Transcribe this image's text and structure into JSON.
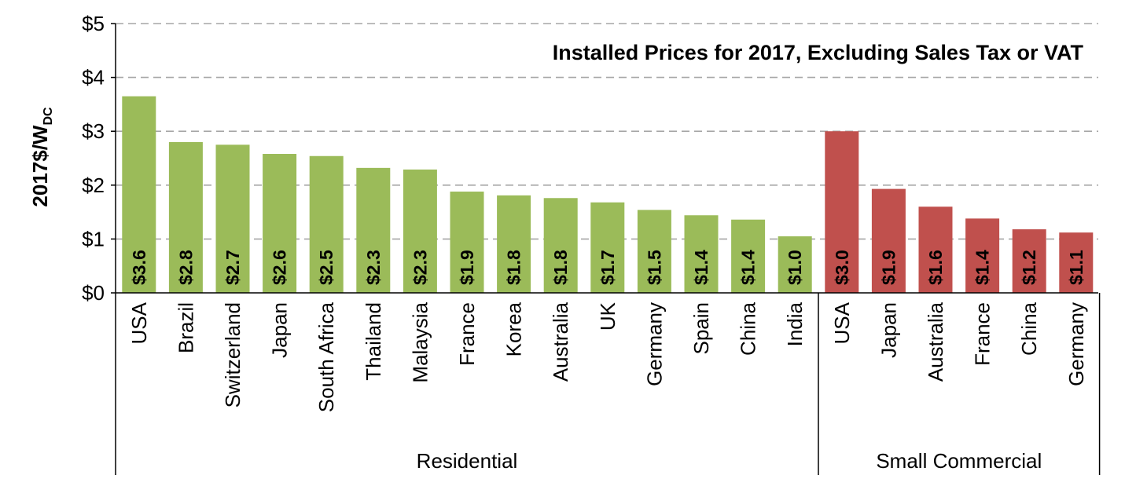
{
  "chart_data": {
    "type": "bar",
    "title": "Installed Prices for 2017, Excluding Sales Tax or VAT",
    "ylabel": "2017$/W",
    "ylabel_subscript": "DC",
    "ylim": [
      0,
      5
    ],
    "y_ticks": [
      0,
      1,
      2,
      3,
      4,
      5
    ],
    "y_tick_labels": [
      "$0",
      "$1",
      "$2",
      "$3",
      "$4",
      "$5"
    ],
    "grid": "horizontal dashed",
    "groups": [
      {
        "name": "Residential",
        "color": "#9BBB59",
        "categories": [
          "USA",
          "Brazil",
          "Switzerland",
          "Japan",
          "South Africa",
          "Thailand",
          "Malaysia",
          "France",
          "Korea",
          "Australia",
          "UK",
          "Germany",
          "Spain",
          "China",
          "India"
        ],
        "values": [
          3.65,
          2.8,
          2.75,
          2.58,
          2.54,
          2.32,
          2.29,
          1.88,
          1.81,
          1.76,
          1.68,
          1.54,
          1.44,
          1.36,
          1.05
        ],
        "labels": [
          "$3.6",
          "$2.8",
          "$2.7",
          "$2.6",
          "$2.5",
          "$2.3",
          "$2.3",
          "$1.9",
          "$1.8",
          "$1.8",
          "$1.7",
          "$1.5",
          "$1.4",
          "$1.4",
          "$1.0"
        ]
      },
      {
        "name": "Small Commercial",
        "color": "#C0504D",
        "categories": [
          "USA",
          "Japan",
          "Australia",
          "France",
          "China",
          "Germany"
        ],
        "values": [
          3.0,
          1.93,
          1.6,
          1.38,
          1.18,
          1.12
        ],
        "labels": [
          "$3.0",
          "$1.9",
          "$1.6",
          "$1.4",
          "$1.2",
          "$1.1"
        ]
      }
    ]
  }
}
